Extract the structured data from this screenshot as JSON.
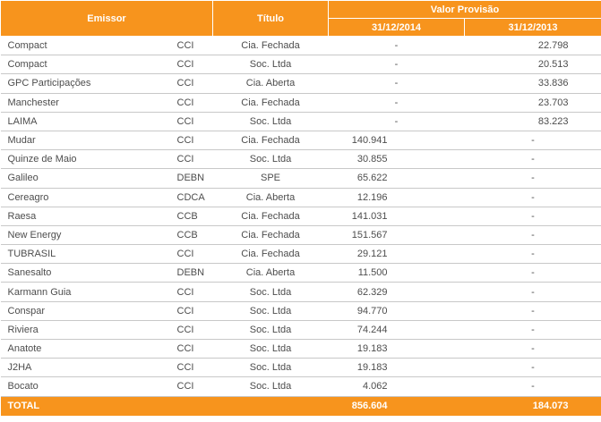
{
  "headers": {
    "emissor": "Emissor",
    "titulo": "Título",
    "valor": "Valor Provisão",
    "date_2014": "31/12/2014",
    "date_2013": "31/12/2013"
  },
  "rows": [
    {
      "emissor": "Compact",
      "tipo": "CCI",
      "titulo": "Cia. Fechada",
      "v2014": "-",
      "v2013": "22.798"
    },
    {
      "emissor": "Compact",
      "tipo": "CCI",
      "titulo": "Soc. Ltda",
      "v2014": "-",
      "v2013": "20.513"
    },
    {
      "emissor": "GPC Participações",
      "tipo": "CCI",
      "titulo": "Cia. Aberta",
      "v2014": "-",
      "v2013": "33.836"
    },
    {
      "emissor": "Manchester",
      "tipo": "CCI",
      "titulo": "Cia. Fechada",
      "v2014": "-",
      "v2013": "23.703"
    },
    {
      "emissor": "LAIMA",
      "tipo": "CCI",
      "titulo": "Soc. Ltda",
      "v2014": "-",
      "v2013": "83.223"
    },
    {
      "emissor": "Mudar",
      "tipo": "CCI",
      "titulo": "Cia. Fechada",
      "v2014": "140.941",
      "v2013": "-"
    },
    {
      "emissor": "Quinze de Maio",
      "tipo": "CCI",
      "titulo": "Soc. Ltda",
      "v2014": "30.855",
      "v2013": "-"
    },
    {
      "emissor": "Galileo",
      "tipo": "DEBN",
      "titulo": "SPE",
      "v2014": "65.622",
      "v2013": "-"
    },
    {
      "emissor": "Cereagro",
      "tipo": "CDCA",
      "titulo": "Cia. Aberta",
      "v2014": "12.196",
      "v2013": "-"
    },
    {
      "emissor": "Raesa",
      "tipo": "CCB",
      "titulo": "Cia. Fechada",
      "v2014": "141.031",
      "v2013": "-"
    },
    {
      "emissor": "New Energy",
      "tipo": "CCB",
      "titulo": "Cia. Fechada",
      "v2014": "151.567",
      "v2013": "-"
    },
    {
      "emissor": "TUBRASIL",
      "tipo": "CCI",
      "titulo": "Cia. Fechada",
      "v2014": "29.121",
      "v2013": "-"
    },
    {
      "emissor": "Sanesalto",
      "tipo": "DEBN",
      "titulo": "Cia. Aberta",
      "v2014": "11.500",
      "v2013": "-"
    },
    {
      "emissor": "Karmann Guia",
      "tipo": "CCI",
      "titulo": "Soc. Ltda",
      "v2014": "62.329",
      "v2013": "-"
    },
    {
      "emissor": "Conspar",
      "tipo": "CCI",
      "titulo": "Soc. Ltda",
      "v2014": "94.770",
      "v2013": "-"
    },
    {
      "emissor": "Riviera",
      "tipo": "CCI",
      "titulo": "Soc. Ltda",
      "v2014": "74.244",
      "v2013": "-"
    },
    {
      "emissor": "Anatote",
      "tipo": "CCI",
      "titulo": "Soc. Ltda",
      "v2014": "19.183",
      "v2013": "-"
    },
    {
      "emissor": "J2HA",
      "tipo": "CCI",
      "titulo": "Soc. Ltda",
      "v2014": "19.183",
      "v2013": "-"
    },
    {
      "emissor": "Bocato",
      "tipo": "CCI",
      "titulo": "Soc. Ltda",
      "v2014": "4.062",
      "v2013": "-"
    }
  ],
  "total": {
    "label": "TOTAL",
    "v2014": "856.604",
    "v2013": "184.073"
  },
  "colors": {
    "header_bg": "#f7941d",
    "header_text": "#ffffff",
    "body_text": "#4d4d4d",
    "row_border": "#c8c8c8"
  }
}
